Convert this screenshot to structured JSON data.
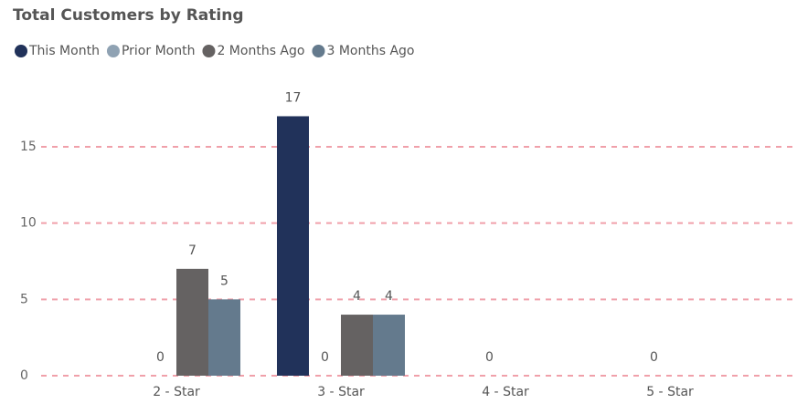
{
  "chart_data": {
    "type": "bar",
    "title": "Total Customers by Rating",
    "categories": [
      "2 - Star",
      "3 - Star",
      "4 - Star",
      "5 - Star"
    ],
    "series": [
      {
        "name": "This Month",
        "color": "#21325a",
        "values": [
          null,
          17,
          null,
          null
        ]
      },
      {
        "name": "Prior Month",
        "color": "#8fa2b3",
        "values": [
          0,
          0,
          0,
          0
        ]
      },
      {
        "name": "2 Months Ago",
        "color": "#656262",
        "values": [
          7,
          4,
          null,
          null
        ]
      },
      {
        "name": "3 Months Ago",
        "color": "#647a8d",
        "values": [
          5,
          4,
          null,
          null
        ]
      }
    ],
    "ylim": [
      0,
      19
    ],
    "yticks": [
      0,
      5,
      10,
      15
    ],
    "grid": true,
    "legend": "top-left"
  }
}
